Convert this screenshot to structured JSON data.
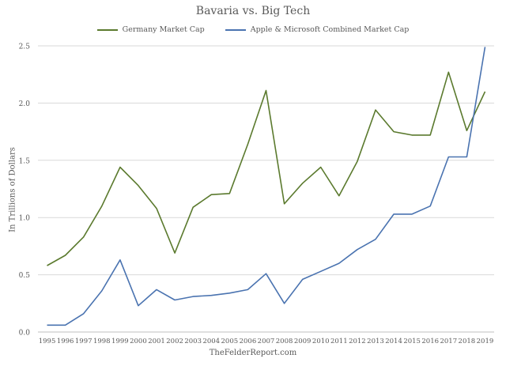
{
  "chart_data": {
    "type": "line",
    "title": "Bavaria vs. Big Tech",
    "xlabel": "",
    "ylabel": "In Trillions of Dollars",
    "source": "TheFelderReport.com",
    "legend_position": "top",
    "grid": "horizontal",
    "ylim": [
      0,
      2.5
    ],
    "yticks": [
      "0.0",
      "0.5",
      "1.0",
      "1.5",
      "2.0",
      "2.5"
    ],
    "x": [
      "1995",
      "1996",
      "1997",
      "1998",
      "1999",
      "2000",
      "2001",
      "2002",
      "2003",
      "2004",
      "2005",
      "2006",
      "2007",
      "2008",
      "2009",
      "2010",
      "2011",
      "2012",
      "2013",
      "2014",
      "2015",
      "2016",
      "2017",
      "2018",
      "2019"
    ],
    "series": [
      {
        "name": "Germany Market Cap",
        "color": "#5b7a2e",
        "values": [
          0.58,
          0.67,
          0.83,
          1.1,
          1.44,
          1.28,
          1.08,
          0.69,
          1.09,
          1.2,
          1.21,
          1.64,
          2.11,
          1.12,
          1.3,
          1.44,
          1.19,
          1.49,
          1.94,
          1.75,
          1.72,
          1.72,
          2.27,
          1.76,
          2.1
        ]
      },
      {
        "name": "Apple & Microsoft Combined Market Cap",
        "color": "#4a73b0",
        "values": [
          0.06,
          0.06,
          0.16,
          0.36,
          0.63,
          0.23,
          0.37,
          0.28,
          0.31,
          0.32,
          0.34,
          0.37,
          0.51,
          0.25,
          0.46,
          0.53,
          0.6,
          0.72,
          0.81,
          1.03,
          1.03,
          1.1,
          1.53,
          1.53,
          2.49
        ]
      }
    ]
  }
}
